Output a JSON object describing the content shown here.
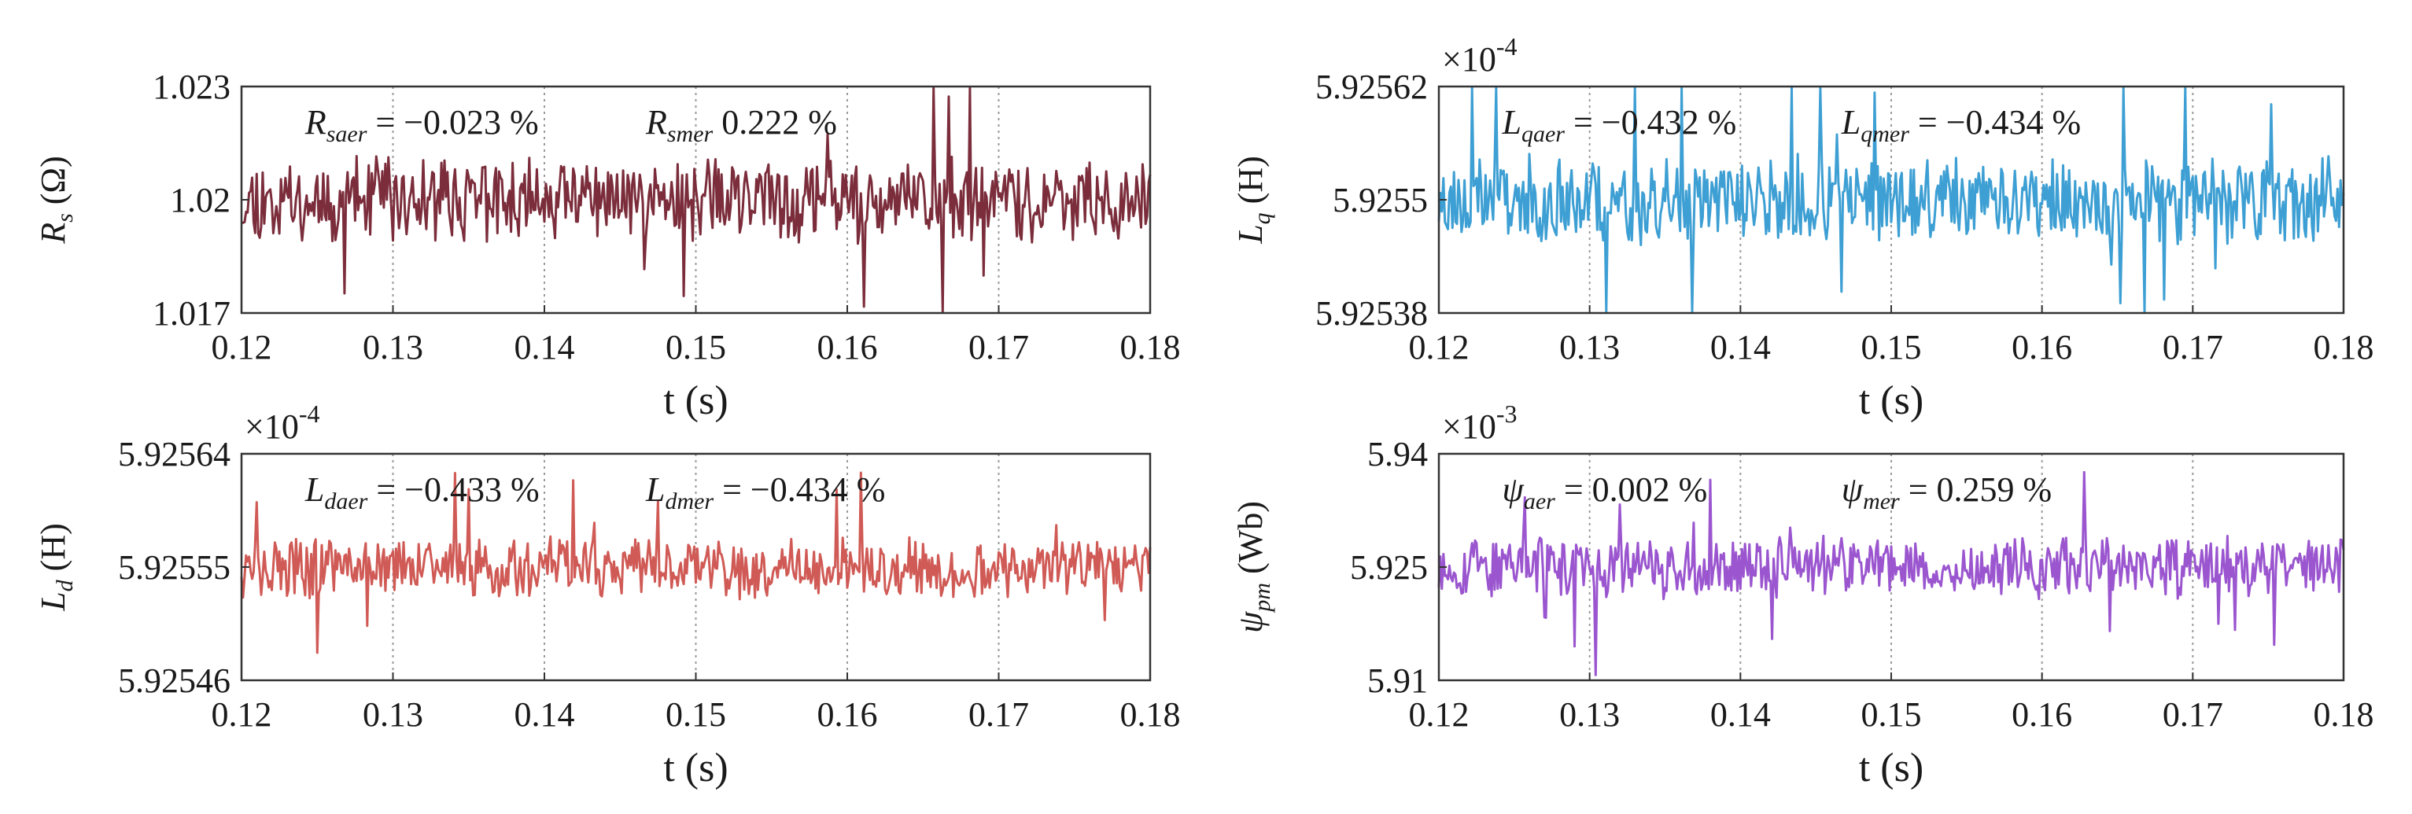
{
  "chart_data": [
    {
      "type": "line",
      "id": "rs",
      "ylabel": {
        "main": "R",
        "sub": "s",
        "unit": "(Ω)"
      },
      "xlabel": "t (s)",
      "x_range": [
        0.12,
        0.18
      ],
      "xticks": [
        "0.12",
        "0.13",
        "0.14",
        "0.15",
        "0.16",
        "0.17",
        "0.18"
      ],
      "ylim": [
        1.017,
        1.023
      ],
      "yticks": [
        "1.017",
        "1.02",
        "1.023"
      ],
      "exponent": null,
      "grid": "vertical dotted",
      "series": [
        {
          "name": "R_s",
          "color": "#7b2d3b",
          "mean": 1.02,
          "noise": 0.0016,
          "seed": 11
        }
      ],
      "annotations": [
        {
          "main": "R",
          "sub": "saer",
          "value": " = −0.023 %"
        },
        {
          "main": "R",
          "sub": "smer",
          "value": " 0.222 %"
        }
      ]
    },
    {
      "type": "line",
      "id": "lq",
      "ylabel": {
        "main": "L",
        "sub": "q",
        "unit": "(H)"
      },
      "xlabel": "t (s)",
      "x_range": [
        0.12,
        0.18
      ],
      "xticks": [
        "0.12",
        "0.13",
        "0.14",
        "0.15",
        "0.16",
        "0.17",
        "0.18"
      ],
      "ylim": [
        5.92538,
        5.92562
      ],
      "yticks": [
        "5.92538",
        "5.9255",
        "5.92562"
      ],
      "exponent": {
        "base": "×10",
        "power": "-4"
      },
      "grid": "vertical dotted",
      "series": [
        {
          "name": "L_q",
          "color": "#3d9fd3",
          "mean": 5.9255,
          "noise": 6.8e-05,
          "seed": 23
        }
      ],
      "annotations": [
        {
          "main": "L",
          "sub": "qaer",
          "value": " = −0.432 %"
        },
        {
          "main": "L",
          "sub": "qmer",
          "value": " = −0.434 %"
        }
      ]
    },
    {
      "type": "line",
      "id": "ld",
      "ylabel": {
        "main": "L",
        "sub": "d",
        "unit": "(H)"
      },
      "xlabel": "t (s)",
      "x_range": [
        0.12,
        0.18
      ],
      "xticks": [
        "0.12",
        "0.13",
        "0.14",
        "0.15",
        "0.16",
        "0.17",
        "0.18"
      ],
      "ylim": [
        5.92546,
        5.92564
      ],
      "yticks": [
        "5.92546",
        "5.92555",
        "5.92564"
      ],
      "exponent": {
        "base": "×10",
        "power": "-4"
      },
      "grid": "vertical dotted",
      "series": [
        {
          "name": "L_d",
          "color": "#d05a55",
          "mean": 5.92555,
          "noise": 3.5e-05,
          "seed": 37
        }
      ],
      "annotations": [
        {
          "main": "L",
          "sub": "daer",
          "value": " = −0.433 %"
        },
        {
          "main": "L",
          "sub": "dmer",
          "value": " = −0.434 %"
        }
      ]
    },
    {
      "type": "line",
      "id": "psi",
      "ylabel": {
        "main": "ψ",
        "sub": "pm",
        "unit": "(Wb)"
      },
      "xlabel": "t (s)",
      "x_range": [
        0.12,
        0.18
      ],
      "xticks": [
        "0.12",
        "0.13",
        "0.14",
        "0.15",
        "0.16",
        "0.17",
        "0.18"
      ],
      "ylim": [
        5.91,
        5.94
      ],
      "yticks": [
        "5.91",
        "5.925",
        "5.94"
      ],
      "exponent": {
        "base": "×10",
        "power": "-3"
      },
      "grid": "vertical dotted",
      "series": [
        {
          "name": "psi_pm",
          "color": "#9a55cf",
          "mean": 5.925,
          "noise": 0.0062,
          "seed": 53
        }
      ],
      "annotations": [
        {
          "main": "ψ",
          "sub": "aer",
          "value": " = 0.002 %"
        },
        {
          "main": "ψ",
          "sub": "mer",
          "value": " = 0.259 %"
        }
      ]
    }
  ]
}
